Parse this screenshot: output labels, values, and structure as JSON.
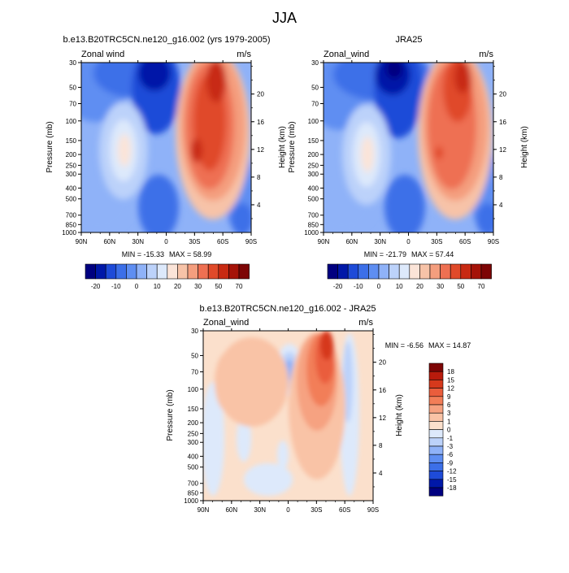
{
  "chart_data": {
    "super_title": "JJA",
    "panels": [
      {
        "type": "contour",
        "title": "b.e13.B20TRC5CN.ne120_g16.002 (yrs 1979-2005)",
        "left_label": "Zonal wind",
        "right_label": "m/s",
        "ylabel": "Pressure (mb)",
        "ylabel_right": "Height (km)",
        "min_label": "MIN = -15.33",
        "max_label": "MAX =  58.99"
      },
      {
        "type": "contour",
        "title": "JRA25",
        "left_label": "Zonal_wind",
        "right_label": "m/s",
        "ylabel": "Pressure (mb)",
        "ylabel_right": "Height (km)",
        "min_label": "MIN = -21.79",
        "max_label": "MAX =  57.44"
      },
      {
        "type": "contour",
        "title": "b.e13.B20TRC5CN.ne120_g16.002 - JRA25",
        "left_label": "Zonal_wind",
        "right_label": "m/s",
        "ylabel": "Pressure (mb)",
        "ylabel_right": "Height (km)",
        "min_label": "MIN =  -6.56",
        "max_label": "MAX =  14.87"
      }
    ],
    "x_ticks": [
      "90N",
      "60N",
      "30N",
      "0",
      "30S",
      "60S",
      "90S"
    ],
    "pressure_ticks": [
      30,
      50,
      70,
      100,
      150,
      200,
      250,
      300,
      400,
      500,
      700,
      850,
      1000
    ],
    "height_ticks": [
      4,
      8,
      12,
      16,
      20
    ],
    "ylim_mb": [
      1000,
      30
    ],
    "top_colorbar": {
      "labels": [
        "-20",
        "-10",
        "0",
        "10",
        "20",
        "30",
        "50",
        "70"
      ],
      "colors": [
        "#000080",
        "#0018a8",
        "#1e4bd8",
        "#3c6fe8",
        "#5e8ef2",
        "#8fb2f8",
        "#bcd2fa",
        "#dde9fb",
        "#fbe4d8",
        "#f7c3a8",
        "#f49e7e",
        "#ee7052",
        "#e04a2a",
        "#c82a12",
        "#a51308",
        "#7d0505"
      ]
    },
    "diff_colorbar": {
      "labels": [
        "18",
        "15",
        "12",
        "9",
        "6",
        "3",
        "1",
        "0",
        "-1",
        "-3",
        "-6",
        "-9",
        "-12",
        "-15",
        "-18"
      ],
      "colors": [
        "#7d0505",
        "#b81b0c",
        "#d6391c",
        "#ea5d3c",
        "#f27e58",
        "#f6a281",
        "#f9c3a6",
        "#fbe0cc",
        "#dde9fb",
        "#bcd2fa",
        "#8fb2f8",
        "#5e8ef2",
        "#3c6fe8",
        "#1e4bd8",
        "#0018a8",
        "#000080"
      ]
    },
    "colors": {
      "model_bg": "#8fb2f8",
      "diff_bg": "#fbe0cc"
    }
  }
}
